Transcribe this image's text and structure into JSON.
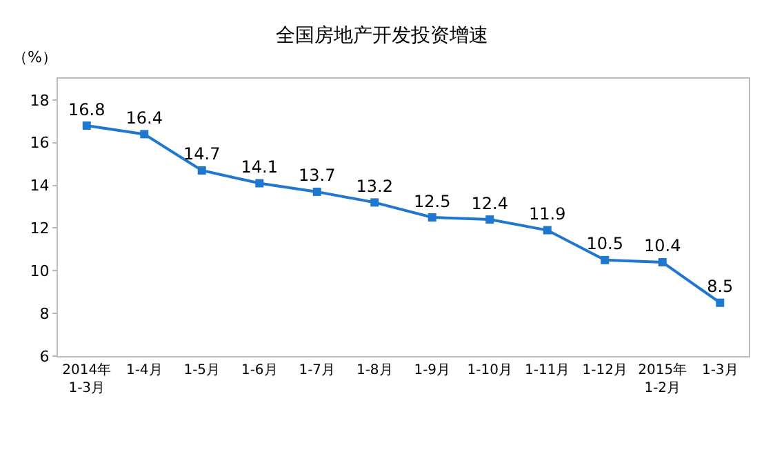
{
  "chart_data": {
    "type": "line",
    "title": "全国房地产开发投资增速",
    "ylabel": "（%）",
    "categories": [
      "2014年\n1-3月",
      "1-4月",
      "1-5月",
      "1-6月",
      "1-7月",
      "1-8月",
      "1-9月",
      "1-10月",
      "1-11月",
      "1-12月",
      "2015年\n1-2月",
      "1-3月"
    ],
    "series": [
      {
        "color": "#1f77d0",
        "values": [
          16.8,
          16.4,
          14.7,
          14.1,
          13.7,
          13.2,
          12.5,
          12.4,
          11.9,
          10.5,
          10.4,
          8.5
        ]
      }
    ],
    "ylim": [
      6,
      19
    ],
    "yticks": [
      6,
      8,
      10,
      12,
      14,
      16,
      18
    ],
    "legend": false,
    "marker": "square",
    "line_style": "solid",
    "data_labels": true
  }
}
